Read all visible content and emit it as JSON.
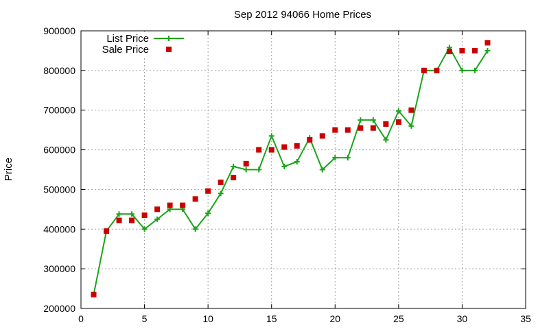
{
  "chart_data": {
    "type": "line",
    "title": "Sep 2012 94066 Home Prices",
    "xlabel": "",
    "ylabel": "Price",
    "xlim": [
      0,
      35
    ],
    "ylim": [
      200000,
      900000
    ],
    "xticks": [
      0,
      5,
      10,
      15,
      20,
      25,
      30,
      35
    ],
    "yticks": [
      200000,
      300000,
      400000,
      500000,
      600000,
      700000,
      800000,
      900000
    ],
    "grid": true,
    "legend_position": "top-left",
    "series": [
      {
        "name": "List Price",
        "style": "line-with-plus-markers",
        "color": "#1aa41a",
        "x": [
          1,
          2,
          3,
          4,
          5,
          6,
          7,
          8,
          9,
          10,
          11,
          12,
          13,
          14,
          15,
          16,
          17,
          18,
          19,
          20,
          21,
          22,
          23,
          24,
          25,
          26,
          27,
          28,
          29,
          30,
          31,
          32
        ],
        "values": [
          235000,
          395000,
          438000,
          438000,
          400000,
          425000,
          450000,
          450000,
          400000,
          440000,
          490000,
          558000,
          550000,
          550000,
          635000,
          558000,
          570000,
          630000,
          550000,
          580000,
          580000,
          675000,
          675000,
          625000,
          698000,
          660000,
          800000,
          800000,
          858000,
          800000,
          800000,
          850000
        ]
      },
      {
        "name": "Sale Price",
        "style": "square-markers",
        "color": "#cc0000",
        "x": [
          1,
          2,
          3,
          4,
          5,
          6,
          7,
          8,
          9,
          10,
          11,
          12,
          13,
          14,
          15,
          16,
          17,
          18,
          19,
          20,
          21,
          22,
          23,
          24,
          25,
          26,
          27,
          28,
          29,
          30,
          31,
          32
        ],
        "values": [
          235000,
          395000,
          422000,
          422000,
          435000,
          450000,
          460000,
          460000,
          476000,
          496000,
          518000,
          530000,
          565000,
          600000,
          600000,
          607000,
          610000,
          625000,
          635000,
          650000,
          650000,
          655000,
          655000,
          665000,
          670000,
          700000,
          800000,
          800000,
          848000,
          850000,
          850000,
          870000
        ]
      }
    ]
  }
}
